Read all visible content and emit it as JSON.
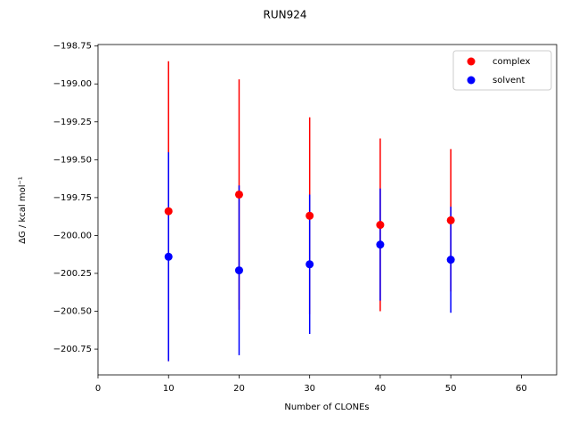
{
  "chart_data": {
    "type": "errorbar-scatter",
    "title": "RUN924",
    "xlabel": "Number of CLONEs",
    "ylabel": "ΔG / kcal mol⁻¹",
    "xlim": [
      0,
      65
    ],
    "xticks": [
      0,
      10,
      20,
      30,
      40,
      50,
      60
    ],
    "ylim": [
      -200.92,
      -198.74
    ],
    "yticks": [
      {
        "value": -200.75,
        "label": "−200.75"
      },
      {
        "value": -200.5,
        "label": "−200.50"
      },
      {
        "value": -200.25,
        "label": "−200.25"
      },
      {
        "value": -200.0,
        "label": "−200.00"
      },
      {
        "value": -199.75,
        "label": "−199.75"
      },
      {
        "value": -199.5,
        "label": "−199.50"
      },
      {
        "value": -199.25,
        "label": "−199.25"
      },
      {
        "value": -199.0,
        "label": "−199.00"
      },
      {
        "value": -198.75,
        "label": "−198.75"
      }
    ],
    "legend": "upper right",
    "series": [
      {
        "name": "complex",
        "color": "#ff0000",
        "x": [
          10,
          20,
          30,
          40,
          50
        ],
        "values": [
          -199.84,
          -199.73,
          -199.87,
          -199.93,
          -199.9
        ],
        "errors": [
          0.99,
          0.76,
          0.65,
          0.57,
          0.47
        ]
      },
      {
        "name": "solvent",
        "color": "#0000ff",
        "x": [
          10,
          20,
          30,
          40,
          50
        ],
        "values": [
          -200.14,
          -200.23,
          -200.19,
          -200.06,
          -200.16
        ],
        "errors": [
          0.69,
          0.56,
          0.46,
          0.37,
          0.35
        ]
      }
    ]
  }
}
